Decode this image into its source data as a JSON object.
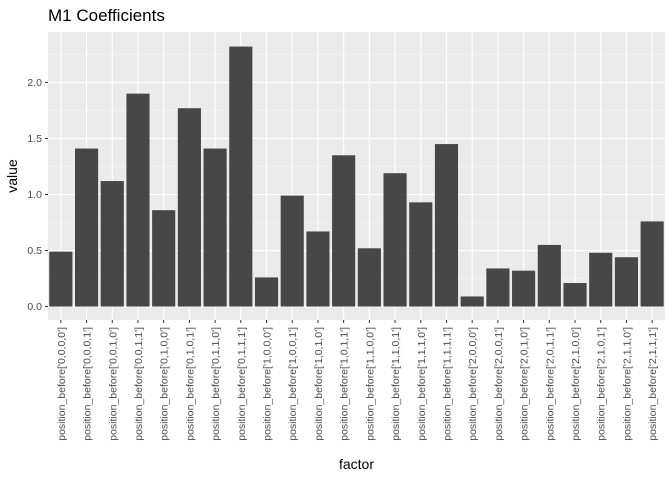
{
  "chart_data": {
    "type": "bar",
    "title": "M1 Coefficients",
    "xlabel": "factor",
    "ylabel": "value",
    "ylim": [
      -0.12,
      2.45
    ],
    "yticks": [
      0.0,
      0.5,
      1.0,
      1.5,
      2.0
    ],
    "ytick_labels": [
      "0.0",
      "0.5",
      "1.0",
      "1.5",
      "2.0"
    ],
    "grid": true,
    "bar_color": "#474747",
    "panel_color": "#ebebeb",
    "categories": [
      "position_before['0,0,0,0']",
      "position_before['0,0,0,1']",
      "position_before['0,0,1,0']",
      "position_before['0,0,1,1']",
      "position_before['0,1,0,0']",
      "position_before['0,1,0,1']",
      "position_before['0,1,1,0']",
      "position_before['0,1,1,1']",
      "position_before['1,0,0,0']",
      "position_before['1,0,0,1']",
      "position_before['1,0,1,0']",
      "position_before['1,0,1,1']",
      "position_before['1,1,0,0']",
      "position_before['1,1,0,1']",
      "position_before['1,1,1,0']",
      "position_before['1,1,1,1']",
      "position_before['2,0,0,0']",
      "position_before['2,0,0,1']",
      "position_before['2,0,1,0']",
      "position_before['2,0,1,1']",
      "position_before['2,1,0,0']",
      "position_before['2,1,0,1']",
      "position_before['2,1,1,0']",
      "position_before['2,1,1,1']"
    ],
    "values": [
      0.49,
      1.41,
      1.12,
      1.9,
      0.86,
      1.77,
      1.41,
      2.32,
      0.26,
      0.99,
      0.67,
      1.35,
      0.52,
      1.19,
      0.93,
      1.45,
      0.09,
      0.34,
      0.32,
      0.55,
      0.21,
      0.48,
      0.44,
      0.76
    ]
  }
}
